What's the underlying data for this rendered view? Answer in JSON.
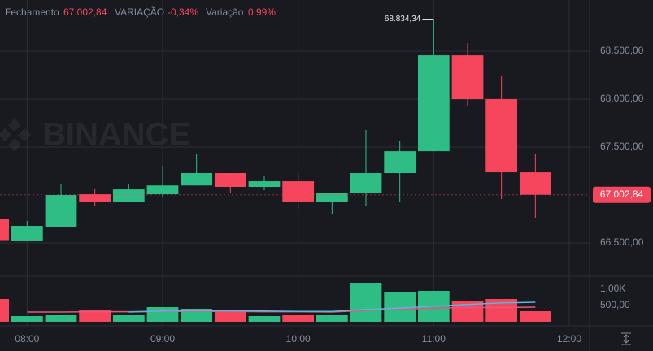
{
  "chart_data": {
    "type": "candlestick",
    "header": {
      "close_label": "Fechamento",
      "close_value": "67.002,84",
      "change_label": "VARIAÇÃO",
      "change_value": "-0,34%",
      "range_label": "Variação",
      "range_value": "0,99%"
    },
    "watermark": "BINANCE",
    "x": [
      465,
      480,
      495,
      510,
      525,
      540,
      555,
      570,
      585,
      600,
      615,
      630,
      645,
      660,
      675,
      690,
      705
    ],
    "open": [
      66750,
      66526,
      66670,
      67008,
      66932,
      67008,
      67100,
      67229,
      67085,
      67144,
      66932,
      67025,
      67229,
      67457,
      68457,
      68000,
      67237
    ],
    "high": [
      66800,
      66729,
      67119,
      67068,
      67119,
      67305,
      67432,
      67229,
      67195,
      67220,
      67025,
      67678,
      67567,
      68834.34,
      68584,
      68245,
      67432
    ],
    "low": [
      66520,
      66526,
      66670,
      66890,
      66932,
      66975,
      67100,
      67025,
      67051,
      66856,
      66805,
      66881,
      66924,
      67457,
      67932,
      66958,
      66763
    ],
    "close": [
      66530,
      66678,
      67000,
      66932,
      67059,
      67100,
      67229,
      67085,
      67144,
      66932,
      67025,
      67229,
      67457,
      68457,
      68000,
      67237,
      67002.84
    ],
    "up_color": "#2ebd85",
    "down_color": "#f6465d",
    "xlim": [
      468,
      729
    ],
    "xticks": [
      {
        "value": 480,
        "label": "08:00"
      },
      {
        "value": 540,
        "label": "09:00"
      },
      {
        "value": 600,
        "label": "10:00"
      },
      {
        "value": 660,
        "label": "11:00"
      },
      {
        "value": 720,
        "label": "12:00"
      }
    ],
    "ylim": [
      66170,
      69034
    ],
    "yticks": [
      {
        "value": 66500,
        "label": "66.500,00"
      },
      {
        "value": 67500,
        "label": "67.500,00"
      },
      {
        "value": 68000,
        "label": "68.000,00"
      },
      {
        "value": 68500,
        "label": "68.500,00"
      }
    ],
    "high_label": {
      "value": 68834.34,
      "label": "68.834,34"
    },
    "last_label": {
      "value": 67002.84,
      "label": "67.002,84"
    },
    "grid": true,
    "volume": {
      "values": [
        700,
        175,
        200,
        375,
        200,
        450,
        400,
        300,
        175,
        200,
        200,
        1200,
        925,
        950,
        625,
        700,
        325
      ],
      "ylim": [
        0,
        1400
      ],
      "yticks": [
        {
          "value": 500,
          "label": "500,00"
        },
        {
          "value": 1000,
          "label": "1,00K"
        }
      ],
      "ma_lines": [
        {
          "color": "#e4577e",
          "values": [
            null,
            300,
            300,
            310,
            310,
            320,
            320,
            320,
            310,
            310,
            300,
            350,
            380,
            420,
            440,
            440,
            450
          ]
        },
        {
          "color": "#5bb7d9",
          "values": [
            null,
            null,
            null,
            null,
            300,
            330,
            340,
            340,
            330,
            320,
            320,
            380,
            420,
            480,
            530,
            580,
            600
          ]
        }
      ]
    }
  }
}
